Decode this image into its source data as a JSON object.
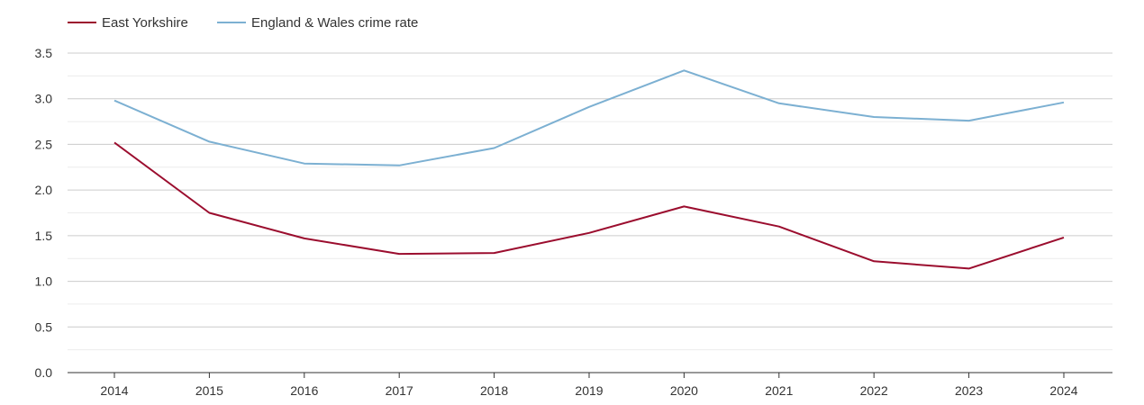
{
  "chart_data": {
    "type": "line",
    "title": "",
    "xlabel": "",
    "ylabel": "",
    "categories": [
      "2014",
      "2015",
      "2016",
      "2017",
      "2018",
      "2019",
      "2020",
      "2021",
      "2022",
      "2023",
      "2024"
    ],
    "series": [
      {
        "name": "East Yorkshire",
        "color": "#9b0d2e",
        "values": [
          2.52,
          1.75,
          1.47,
          1.3,
          1.31,
          1.53,
          1.82,
          1.6,
          1.22,
          1.14,
          1.48
        ]
      },
      {
        "name": "England & Wales crime rate",
        "color": "#7cb0d2",
        "values": [
          2.98,
          2.53,
          2.29,
          2.27,
          2.46,
          2.91,
          3.31,
          2.95,
          2.8,
          2.76,
          2.96
        ]
      }
    ],
    "ylim": [
      0,
      3.5
    ],
    "yticks": [
      "0.0",
      "0.5",
      "1.0",
      "1.5",
      "2.0",
      "2.5",
      "3.0",
      "3.5"
    ],
    "grid": true,
    "legend_position": "top-left"
  }
}
